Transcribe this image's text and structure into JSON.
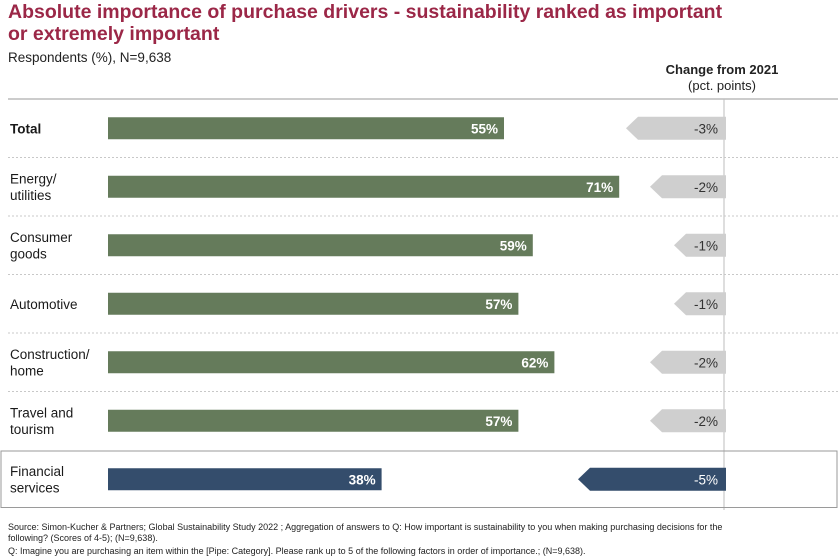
{
  "header": {
    "title_line1": "Absolute importance of purchase drivers - sustainability ranked as important",
    "title_line2": "or extremely important",
    "subtitle": "Respondents (%), N=9,638",
    "change_title": "Change from 2021",
    "change_unit": "(pct. points)"
  },
  "footnotes": {
    "source_line1": "Source: Simon-Kucher & Partners; Global Sustainability Study 2022 ; Aggregation of answers to Q: How important is sustainability to you when making purchasing decisions for the",
    "source_line2": "following? (Scores of 4-5); (N=9,638).",
    "question": "Q: Imagine you are purchasing an item within the [Pipe: Category]. Please rank up to 5 of the following factors in order of importance.; (N=9,638)."
  },
  "colors": {
    "bar": "#657b5b",
    "bar_highlight": "#344d6c",
    "arrow": "#cfcfcf",
    "arrow_highlight": "#344d6c",
    "title": "#9b2747"
  },
  "chart_data": {
    "type": "bar",
    "orientation": "horizontal",
    "title": "Absolute importance of purchase drivers - sustainability ranked as important or extremely important",
    "categories": [
      {
        "label": [
          "Total"
        ],
        "bold": true
      },
      {
        "label": [
          "Energy/",
          "utilities"
        ]
      },
      {
        "label": [
          "Consumer",
          "goods"
        ]
      },
      {
        "label": [
          "Automotive"
        ]
      },
      {
        "label": [
          "Construction/",
          "home"
        ]
      },
      {
        "label": [
          "Travel and",
          "tourism"
        ]
      },
      {
        "label": [
          "Financial",
          "services"
        ],
        "highlight": true
      }
    ],
    "values": [
      55,
      71,
      59,
      57,
      62,
      57,
      38
    ],
    "value_labels": [
      "55%",
      "71%",
      "59%",
      "57%",
      "62%",
      "57%",
      "38%"
    ],
    "unit": "%",
    "xlim": [
      0,
      100
    ],
    "change": {
      "title": "Change from 2021",
      "unit": "pct. points",
      "values": [
        -3,
        -2,
        -1,
        -1,
        -2,
        -2,
        -5
      ],
      "labels": [
        "-3%",
        "-2%",
        "-1%",
        "-1%",
        "-2%",
        "-2%",
        "-5%"
      ]
    }
  }
}
